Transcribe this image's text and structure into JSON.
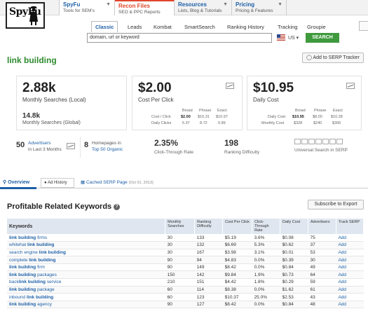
{
  "logo": {
    "text": "SpyFu"
  },
  "topnav": [
    {
      "title": "SpyFu",
      "sub": "Tools for SEM's"
    },
    {
      "title": "Recon Files",
      "sub": "SEO & PPC Reports"
    },
    {
      "title": "Resources",
      "sub": "Lists, Blog & Tutorials"
    },
    {
      "title": "Pricing",
      "sub": "Pricing & Features"
    }
  ],
  "subnav": [
    "Classic",
    "Leads",
    "Kombat",
    "SmartSearch",
    "Ranking History",
    "Tracking",
    "Groupie"
  ],
  "search": {
    "value": "domain, url or keyword",
    "country": "US",
    "button": "SEARCH"
  },
  "page_title": "link building",
  "serp_tracker_button": "Add to SERP Tracker",
  "monthly": {
    "value": "2.88k",
    "label": "Monthly Searches (Local)",
    "global_value": "14.8k",
    "global_label": "Monthly Searches (Global)"
  },
  "cpc": {
    "value": "$2.00",
    "label": "Cost Per Click",
    "headers": [
      "Broad",
      "Phrase",
      "Exact"
    ],
    "rows": [
      {
        "label": "Cost / Click",
        "broad": "$2.00",
        "phrase": "$10.31",
        "exact": "$10.97"
      },
      {
        "label": "Daily Clicks",
        "broad": "5.37",
        "phrase": "8.72",
        "exact": "0.89"
      }
    ]
  },
  "daily_cost": {
    "value": "$10.95",
    "label": "Daily Cost",
    "headers": [
      "Broad",
      "Phrase",
      "Exact"
    ],
    "rows": [
      {
        "label": "Daily Cost",
        "broad": "$10.95",
        "phrase": "$8.00",
        "exact": "$10.28"
      },
      {
        "label": "Monthly Cost",
        "broad": "$328",
        "phrase": "$240",
        "exact": "$306"
      }
    ]
  },
  "advertisers": {
    "num": "50",
    "l1": "Advertisers",
    "l2": "in Last 3 Months"
  },
  "homepages": {
    "num": "8",
    "l1": "Homepages in",
    "l2": "Top 50 Organic"
  },
  "ctr": {
    "value": "2.35%",
    "label": "Click-Through Rate"
  },
  "difficulty": {
    "value": "198",
    "label": "Ranking Difficulty"
  },
  "universal": {
    "label": "Universal Search in SERP"
  },
  "tabs": {
    "overview": "Overview",
    "ad_history": "Ad History",
    "cached": "Cached SERP Page",
    "cached_date": "(Oct 01, 2013)"
  },
  "section_title": "Profitable Related Keywords",
  "export_button": "Subscribe to Export",
  "table": {
    "headers": [
      "Keywords",
      "Monthly Searches",
      "Ranking Difficulty",
      "Cost Per Click",
      "Click-Through Rate",
      "Daily Cost",
      "Advertisers",
      "Track SERP"
    ],
    "rows": [
      {
        "pre": "",
        "kw": "link building",
        "post": " firms",
        "ms": "30",
        "rd": "133",
        "cpc": "$5.19",
        "ctr": "3.6%",
        "dc": "$0.08",
        "adv": "75",
        "track": "Add"
      },
      {
        "pre": "whitehat ",
        "kw": "link building",
        "post": "",
        "ms": "30",
        "rd": "132",
        "cpc": "$6.69",
        "ctr": "5.3%",
        "dc": "$0.62",
        "adv": "37",
        "track": "Add"
      },
      {
        "pre": "search engine ",
        "kw": "link building",
        "post": "",
        "ms": "30",
        "rd": "167",
        "cpc": "$3.98",
        "ctr": "3.1%",
        "dc": "$0.01",
        "adv": "53",
        "track": "Add"
      },
      {
        "pre": "complete ",
        "kw": "link building",
        "post": "",
        "ms": "90",
        "rd": "94",
        "cpc": "$4.83",
        "ctr": "0.0%",
        "dc": "$0.39",
        "adv": "30",
        "track": "Add"
      },
      {
        "pre": "",
        "kw": "link building",
        "post": " firm",
        "ms": "90",
        "rd": "149",
        "cpc": "$8.42",
        "ctr": "0.0%",
        "dc": "$0.84",
        "adv": "49",
        "track": "Add"
      },
      {
        "pre": "",
        "kw": "link building",
        "post": " packages",
        "ms": "150",
        "rd": "142",
        "cpc": "$9.84",
        "ctr": "1.9%",
        "dc": "$0.73",
        "adv": "64",
        "track": "Add"
      },
      {
        "pre": "back",
        "kw": "link building",
        "post": " service",
        "ms": "210",
        "rd": "151",
        "cpc": "$4.42",
        "ctr": "1.8%",
        "dc": "$0.29",
        "adv": "59",
        "track": "Add"
      },
      {
        "pre": "",
        "kw": "link building",
        "post": " package",
        "ms": "60",
        "rd": "114",
        "cpc": "$8.38",
        "ctr": "0.0%",
        "dc": "$1.62",
        "adv": "61",
        "track": "Add"
      },
      {
        "pre": "inbound ",
        "kw": "link building",
        "post": "",
        "ms": "60",
        "rd": "123",
        "cpc": "$10.37",
        "ctr": "25.0%",
        "dc": "$2.53",
        "adv": "43",
        "track": "Add"
      },
      {
        "pre": "",
        "kw": "link building",
        "post": " agency",
        "ms": "90",
        "rd": "127",
        "cpc": "$8.42",
        "ctr": "0.0%",
        "dc": "$0.84",
        "adv": "48",
        "track": "Add"
      }
    ]
  }
}
